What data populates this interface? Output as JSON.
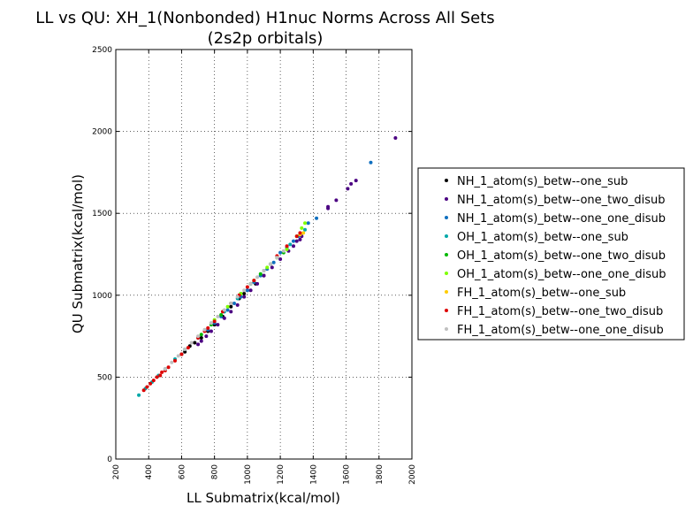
{
  "chart_data": {
    "type": "scatter",
    "title_line1": "LL vs QU: XH_1(Nonbonded) H1nuc Norms Across All Sets",
    "title_line2": "(2s2p orbitals)",
    "xlabel": "LL Submatrix(kcal/mol)",
    "ylabel": "QU Submatrix(kcal/mol)",
    "xlim": [
      200,
      2000
    ],
    "ylim": [
      0,
      2500
    ],
    "xticks": [
      200,
      400,
      600,
      800,
      1000,
      1200,
      1400,
      1600,
      1800,
      2000
    ],
    "yticks": [
      0,
      500,
      1000,
      1500,
      2000,
      2500
    ],
    "grid": true,
    "legend_position": "right-outside",
    "series": [
      {
        "name": "NH_1_atom(s)_betw--one_sub",
        "color": "#000000",
        "points": [
          [
            600,
            640
          ],
          [
            620,
            655
          ],
          [
            650,
            690
          ],
          [
            680,
            710
          ],
          [
            720,
            740
          ],
          [
            760,
            780
          ],
          [
            800,
            820
          ],
          [
            850,
            870
          ],
          [
            900,
            930
          ],
          [
            950,
            980
          ],
          [
            980,
            1010
          ],
          [
            1000,
            1030
          ],
          [
            1050,
            1070
          ],
          [
            1100,
            1120
          ]
        ]
      },
      {
        "name": "NH_1_atom(s)_betw--one_two_disub",
        "color": "#4b0082",
        "points": [
          [
            700,
            700
          ],
          [
            720,
            720
          ],
          [
            750,
            750
          ],
          [
            780,
            780
          ],
          [
            820,
            820
          ],
          [
            860,
            860
          ],
          [
            900,
            900
          ],
          [
            940,
            940
          ],
          [
            980,
            990
          ],
          [
            1020,
            1030
          ],
          [
            1060,
            1070
          ],
          [
            1100,
            1120
          ],
          [
            1150,
            1170
          ],
          [
            1200,
            1220
          ],
          [
            1250,
            1270
          ],
          [
            1280,
            1300
          ],
          [
            1300,
            1330
          ],
          [
            1320,
            1340
          ],
          [
            1330,
            1360
          ],
          [
            1490,
            1530
          ],
          [
            1490,
            1540
          ],
          [
            1540,
            1580
          ],
          [
            1610,
            1650
          ],
          [
            1630,
            1680
          ],
          [
            1660,
            1700
          ],
          [
            1900,
            1960
          ]
        ]
      },
      {
        "name": "NH_1_atom(s)_betw--one_one_disub",
        "color": "#0f6fbf",
        "points": [
          [
            760,
            790
          ],
          [
            800,
            830
          ],
          [
            840,
            870
          ],
          [
            880,
            910
          ],
          [
            920,
            950
          ],
          [
            960,
            990
          ],
          [
            1000,
            1030
          ],
          [
            1040,
            1080
          ],
          [
            1080,
            1120
          ],
          [
            1120,
            1160
          ],
          [
            1160,
            1200
          ],
          [
            1200,
            1260
          ],
          [
            1240,
            1290
          ],
          [
            1280,
            1330
          ],
          [
            1310,
            1360
          ],
          [
            1370,
            1440
          ],
          [
            1420,
            1470
          ],
          [
            1750,
            1810
          ]
        ]
      },
      {
        "name": "OH_1_atom(s)_betw--one_sub",
        "color": "#00a8a8",
        "points": [
          [
            340,
            390
          ],
          [
            380,
            430
          ],
          [
            420,
            470
          ],
          [
            460,
            510
          ],
          [
            500,
            550
          ],
          [
            560,
            610
          ],
          [
            620,
            670
          ],
          [
            700,
            740
          ],
          [
            780,
            830
          ],
          [
            860,
            900
          ],
          [
            940,
            980
          ],
          [
            1020,
            1070
          ],
          [
            1100,
            1150
          ],
          [
            1180,
            1230
          ],
          [
            1260,
            1310
          ],
          [
            1350,
            1400
          ]
        ]
      },
      {
        "name": "OH_1_atom(s)_betw--one_two_disub",
        "color": "#00b800",
        "points": [
          [
            720,
            760
          ],
          [
            780,
            820
          ],
          [
            840,
            880
          ],
          [
            900,
            950
          ],
          [
            960,
            1010
          ],
          [
            1020,
            1070
          ],
          [
            1080,
            1130
          ],
          [
            1140,
            1190
          ],
          [
            1180,
            1230
          ],
          [
            1220,
            1260
          ]
        ]
      },
      {
        "name": "OH_1_atom(s)_betw--one_one_disub",
        "color": "#7fff00",
        "points": [
          [
            800,
            850
          ],
          [
            880,
            930
          ],
          [
            960,
            1010
          ],
          [
            1040,
            1090
          ],
          [
            1120,
            1170
          ],
          [
            1180,
            1230
          ],
          [
            1240,
            1280
          ],
          [
            1300,
            1360
          ],
          [
            1330,
            1410
          ],
          [
            1350,
            1440
          ]
        ]
      },
      {
        "name": "FH_1_atom(s)_betw--one_sub",
        "color": "#ffcc00",
        "points": [
          [
            1340,
            1380
          ],
          [
            1320,
            1370
          ]
        ]
      },
      {
        "name": "FH_1_atom(s)_betw--one_two_disub",
        "color": "#dd0000",
        "points": [
          [
            370,
            420
          ],
          [
            390,
            440
          ],
          [
            410,
            460
          ],
          [
            430,
            480
          ],
          [
            450,
            500
          ],
          [
            470,
            510
          ],
          [
            480,
            530
          ],
          [
            500,
            540
          ],
          [
            520,
            560
          ],
          [
            560,
            600
          ],
          [
            600,
            640
          ],
          [
            640,
            680
          ],
          [
            700,
            740
          ],
          [
            740,
            780
          ],
          [
            760,
            800
          ],
          [
            800,
            840
          ],
          [
            850,
            900
          ],
          [
            900,
            950
          ],
          [
            950,
            1000
          ],
          [
            1000,
            1050
          ],
          [
            1040,
            1090
          ],
          [
            1180,
            1240
          ],
          [
            1240,
            1300
          ],
          [
            1300,
            1360
          ],
          [
            1320,
            1380
          ]
        ]
      },
      {
        "name": "FH_1_atom(s)_betw--one_one_disub",
        "color": "#c0c0c0",
        "points": [
          [
            500,
            550
          ],
          [
            540,
            590
          ],
          [
            580,
            630
          ],
          [
            620,
            670
          ],
          [
            660,
            710
          ],
          [
            700,
            750
          ],
          [
            740,
            790
          ],
          [
            780,
            830
          ],
          [
            820,
            870
          ],
          [
            860,
            910
          ],
          [
            900,
            950
          ],
          [
            940,
            990
          ],
          [
            980,
            1030
          ],
          [
            1020,
            1070
          ],
          [
            1060,
            1110
          ],
          [
            1100,
            1150
          ],
          [
            1140,
            1190
          ],
          [
            1180,
            1230
          ],
          [
            1220,
            1270
          ]
        ]
      }
    ]
  }
}
